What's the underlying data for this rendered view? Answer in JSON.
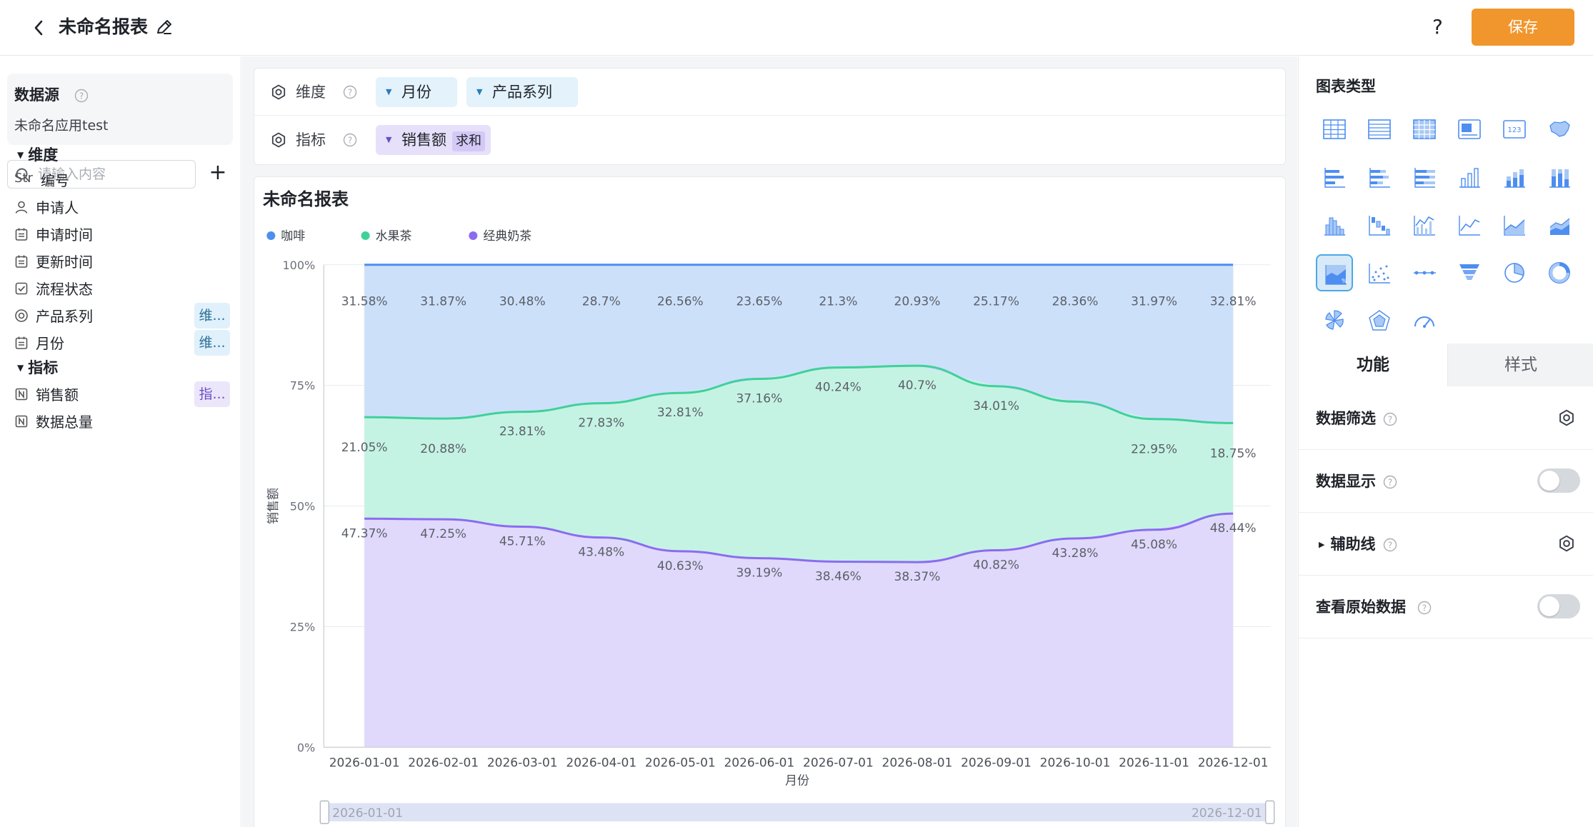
{
  "header": {
    "title": "未命名报表",
    "help_label": "?",
    "save_label": "保存"
  },
  "left": {
    "datasource_title": "数据源",
    "datasource_name": "未命名应用test",
    "search_placeholder": "请输入内容",
    "add_label": "+",
    "dimension_group": "维度",
    "indicator_group": "指标",
    "dimension_fields": [
      {
        "icon": "str-icon",
        "prefix": "Str",
        "label": "编号",
        "tag": ""
      },
      {
        "icon": "person-icon",
        "prefix": "",
        "label": "申请人",
        "tag": ""
      },
      {
        "icon": "calendar-icon",
        "prefix": "",
        "label": "申请时间",
        "tag": ""
      },
      {
        "icon": "calendar-icon",
        "prefix": "",
        "label": "更新时间",
        "tag": ""
      },
      {
        "icon": "checkbox-icon",
        "prefix": "",
        "label": "流程状态",
        "tag": ""
      },
      {
        "icon": "radio-icon",
        "prefix": "",
        "label": "产品系列",
        "tag": "维..."
      },
      {
        "icon": "calendar-icon",
        "prefix": "",
        "label": "月份",
        "tag": "维..."
      }
    ],
    "indicator_fields": [
      {
        "icon": "number-icon",
        "label": "销售额",
        "tag": "指..."
      },
      {
        "icon": "number-icon",
        "label": "数据总量",
        "tag": ""
      }
    ]
  },
  "config": {
    "dimension_label": "维度",
    "indicator_label": "指标",
    "dimension_pills": [
      "月份",
      "产品系列"
    ],
    "indicator_pill": "销售额",
    "indicator_agg": "求和"
  },
  "chart_card": {
    "title": "未命名报表",
    "range_start": "2026-01-01",
    "range_end": "2026-12-01"
  },
  "chart_data": {
    "type": "area",
    "subtype": "percent-stacked",
    "title": "未命名报表",
    "xlabel": "月份",
    "ylabel": "销售额",
    "ylim": [
      0,
      100
    ],
    "yticks": [
      "0%",
      "25%",
      "50%",
      "75%",
      "100%"
    ],
    "legend_position": "top-left",
    "grid": true,
    "categories": [
      "2026-01-01",
      "2026-02-01",
      "2026-03-01",
      "2026-04-01",
      "2026-05-01",
      "2026-06-01",
      "2026-07-01",
      "2026-08-01",
      "2026-09-01",
      "2026-10-01",
      "2026-11-01",
      "2026-12-01"
    ],
    "series": [
      {
        "name": "经典奶茶",
        "color": "#8b6cf0",
        "fill": "#e0d9fc",
        "values": [
          47.37,
          47.25,
          45.71,
          43.48,
          40.63,
          39.19,
          38.46,
          38.37,
          40.82,
          43.28,
          45.08,
          48.44
        ],
        "labels": [
          "47.37%",
          "47.25%",
          "45.71%",
          "43.48%",
          "40.63%",
          "39.19%",
          "38.46%",
          "38.37%",
          "40.82%",
          "43.28%",
          "45.08%",
          "48.44%"
        ]
      },
      {
        "name": "水果茶",
        "color": "#3fd19a",
        "fill": "#c5f3e3",
        "values": [
          21.05,
          20.88,
          23.81,
          27.83,
          32.81,
          37.16,
          40.24,
          40.7,
          34.01,
          28.36,
          22.95,
          18.75
        ],
        "labels": [
          "21.05%",
          "20.88%",
          "23.81%",
          "27.83%",
          "32.81%",
          "37.16%",
          "40.24%",
          "40.7%",
          "34.01%",
          "",
          "22.95%",
          "18.75%"
        ]
      },
      {
        "name": "咖啡",
        "color": "#4d8ef0",
        "fill": "#cde0fa",
        "values": [
          31.58,
          31.87,
          30.48,
          28.7,
          26.56,
          23.65,
          21.3,
          20.93,
          25.17,
          28.36,
          31.97,
          32.81
        ],
        "labels": [
          "31.58%",
          "31.87%",
          "30.48%",
          "28.7%",
          "26.56%",
          "23.65%",
          "21.3%",
          "20.93%",
          "25.17%",
          "28.36%",
          "31.97%",
          "32.81%"
        ]
      }
    ],
    "legend_order": [
      "咖啡",
      "水果茶",
      "经典奶茶"
    ]
  },
  "right": {
    "chart_type_title": "图表类型",
    "chart_types": [
      "table-icon",
      "detail-table-icon",
      "pivot-table-icon",
      "kpi-card-icon",
      "number-card-icon",
      "map-icon",
      "bar-horizontal-icon",
      "stacked-bar-horizontal-icon",
      "percent-bar-horizontal-icon",
      "column-icon",
      "stacked-column-icon",
      "percent-column-icon",
      "histogram-icon",
      "waterfall-icon",
      "combo-icon",
      "line-icon",
      "area-icon",
      "stacked-area-icon",
      "percent-area-icon",
      "scatter-icon",
      "dot-line-icon",
      "funnel-icon",
      "pie-icon",
      "donut-icon",
      "rose-icon",
      "radar-icon",
      "gauge-icon"
    ],
    "selected_chart_type": "percent-area-icon",
    "tab_function": "功能",
    "tab_style": "样式",
    "options": [
      {
        "label": "数据筛选",
        "control": "gear",
        "expandable": false
      },
      {
        "label": "数据显示",
        "control": "toggle",
        "expandable": false
      },
      {
        "label": "辅助线",
        "control": "gear",
        "expandable": true
      },
      {
        "label": "查看原始数据",
        "control": "toggle",
        "expandable": false
      }
    ]
  }
}
